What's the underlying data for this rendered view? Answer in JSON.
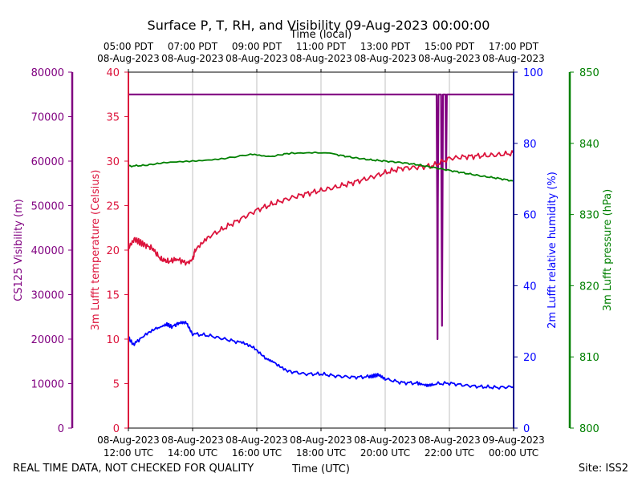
{
  "chart_data": {
    "type": "line",
    "title": "Surface P, T, RH, and Visibility 09-Aug-2023 00:00:00",
    "top_axis_label": "Time (local)",
    "xlabel": "Time (UTC)",
    "footer_left": "REAL TIME DATA, NOT CHECKED FOR QUALITY",
    "footer_right": "Site: ISS2",
    "x_range_hours_utc": [
      12,
      24
    ],
    "x_ticks_bottom": [
      {
        "hour": 12,
        "date": "08-Aug-2023",
        "time": "12:00 UTC"
      },
      {
        "hour": 14,
        "date": "08-Aug-2023",
        "time": "14:00 UTC"
      },
      {
        "hour": 16,
        "date": "08-Aug-2023",
        "time": "16:00 UTC"
      },
      {
        "hour": 18,
        "date": "08-Aug-2023",
        "time": "18:00 UTC"
      },
      {
        "hour": 20,
        "date": "08-Aug-2023",
        "time": "20:00 UTC"
      },
      {
        "hour": 22,
        "date": "08-Aug-2023",
        "time": "22:00 UTC"
      },
      {
        "hour": 24,
        "date": "09-Aug-2023",
        "time": "00:00 UTC"
      }
    ],
    "x_ticks_top": [
      {
        "hour": 12,
        "time": "05:00 PDT",
        "date": "08-Aug-2023"
      },
      {
        "hour": 14,
        "time": "07:00 PDT",
        "date": "08-Aug-2023"
      },
      {
        "hour": 16,
        "time": "09:00 PDT",
        "date": "08-Aug-2023"
      },
      {
        "hour": 18,
        "time": "11:00 PDT",
        "date": "08-Aug-2023"
      },
      {
        "hour": 20,
        "time": "13:00 PDT",
        "date": "08-Aug-2023"
      },
      {
        "hour": 22,
        "time": "15:00 PDT",
        "date": "08-Aug-2023"
      },
      {
        "hour": 24,
        "time": "17:00 PDT",
        "date": "08-Aug-2023"
      }
    ],
    "axes": {
      "visibility": {
        "label": "CS125 Visibility (m)",
        "range": [
          0,
          80000
        ],
        "ticks": [
          0,
          10000,
          20000,
          30000,
          40000,
          50000,
          60000,
          70000,
          80000
        ],
        "color": "#800080"
      },
      "temperature": {
        "label": "3m Lufft temperature (Celsius)",
        "range": [
          0,
          40
        ],
        "ticks": [
          0,
          5,
          10,
          15,
          20,
          25,
          30,
          35,
          40
        ],
        "color": "#dc143c"
      },
      "humidity": {
        "label": "2m Lufft relative humidity (%)",
        "range": [
          0,
          100
        ],
        "ticks": [
          0,
          20,
          40,
          60,
          80,
          100
        ],
        "color": "#0000ff",
        "spine_color": "#00008b"
      },
      "pressure": {
        "label": "3m Lufft pressure (hPa)",
        "range": [
          800,
          850
        ],
        "ticks": [
          800,
          810,
          820,
          830,
          840,
          850
        ],
        "color": "#008000"
      }
    },
    "series": [
      {
        "name": "visibility",
        "axis": "visibility",
        "color": "#800080",
        "x": [
          12,
          21.6,
          21.62,
          21.63,
          21.64,
          21.66,
          21.68,
          21.74,
          21.76,
          21.77,
          21.78,
          21.8,
          21.86,
          21.88,
          21.89,
          21.9,
          21.92,
          24
        ],
        "y": [
          75000,
          75000,
          50000,
          20000,
          50000,
          75000,
          75000,
          75000,
          40000,
          23000,
          40000,
          75000,
          75000,
          75000,
          60000,
          58000,
          75000,
          75000
        ]
      },
      {
        "name": "temperature",
        "axis": "temperature",
        "color": "#dc143c",
        "x": [
          12,
          12.2,
          12.5,
          12.75,
          13,
          13.25,
          13.5,
          13.85,
          14,
          14.1,
          14.5,
          15,
          15.5,
          16,
          16.5,
          17,
          17.5,
          18,
          18.5,
          19,
          19.5,
          20,
          20.5,
          21,
          21.5,
          22,
          22.5,
          23,
          23.5,
          24
        ],
        "y": [
          20.2,
          21.2,
          20.6,
          20.2,
          19.0,
          18.7,
          19.0,
          18.5,
          19.0,
          20.2,
          21.5,
          22.5,
          23.5,
          24.5,
          25.2,
          25.8,
          26.3,
          26.7,
          27.1,
          27.6,
          28.1,
          28.7,
          29.2,
          29.3,
          29.5,
          30.3,
          30.5,
          30.6,
          30.7,
          30.9
        ]
      },
      {
        "name": "humidity",
        "axis": "humidity",
        "color": "#0000ff",
        "x": [
          12,
          12.15,
          12.5,
          12.9,
          13.2,
          13.35,
          13.6,
          13.8,
          14,
          14.5,
          15,
          15.5,
          15.9,
          16.3,
          16.6,
          17,
          17.5,
          18,
          18.5,
          19,
          19.5,
          19.8,
          20,
          20.5,
          21,
          21.3,
          21.5,
          22,
          22.5,
          23,
          23.5,
          24
        ],
        "y": [
          25.5,
          23.5,
          26.0,
          28.0,
          29.2,
          28.5,
          29.6,
          29.8,
          26.5,
          26.0,
          25.0,
          24.0,
          22.5,
          19.5,
          18.2,
          16.0,
          15.2,
          15.2,
          14.6,
          14.3,
          14.4,
          15.0,
          13.8,
          12.8,
          12.6,
          12.0,
          12.4,
          12.6,
          12.0,
          11.6,
          11.4,
          11.6
        ]
      },
      {
        "name": "pressure",
        "axis": "pressure",
        "color": "#008000",
        "x": [
          12,
          12.5,
          13,
          14,
          15,
          15.8,
          16.5,
          17,
          17.9,
          18.5,
          19,
          19.5,
          20,
          20.5,
          21,
          21.5,
          22,
          22.5,
          23,
          23.5,
          24
        ],
        "y": [
          836.8,
          836.9,
          837.2,
          837.5,
          837.9,
          838.4,
          838.2,
          838.6,
          838.7,
          838.4,
          838.0,
          837.7,
          837.5,
          837.3,
          837.0,
          836.6,
          836.2,
          835.8,
          835.4,
          835.1,
          834.7
        ]
      }
    ]
  }
}
